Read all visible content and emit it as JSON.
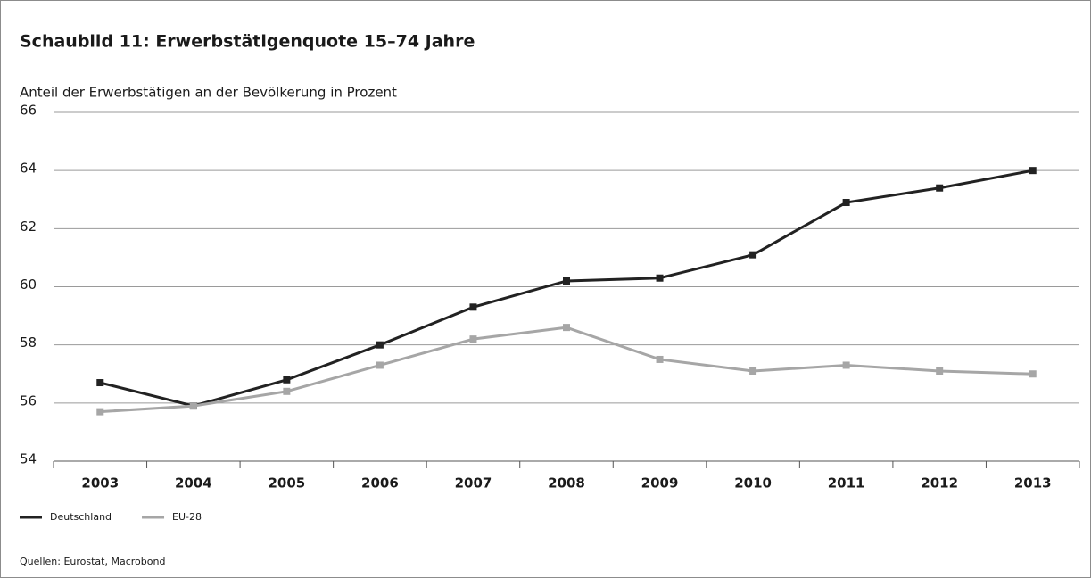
{
  "chart_data": {
    "type": "line",
    "title": "Schaubild 11: Erwerbstätigenquote 15–74 Jahre",
    "subtitle": "Anteil der Erwerbstätigen an der Bevölkerung in Prozent",
    "categories": [
      "2003",
      "2004",
      "2005",
      "2006",
      "2007",
      "2008",
      "2009",
      "2010",
      "2011",
      "2012",
      "2013"
    ],
    "series": [
      {
        "name": "Deutschland",
        "color": "#222222",
        "values": [
          56.7,
          55.9,
          56.8,
          58.0,
          59.3,
          60.2,
          60.3,
          61.1,
          62.9,
          63.4,
          64.0
        ]
      },
      {
        "name": "EU-28",
        "color": "#a6a6a6",
        "values": [
          55.7,
          55.9,
          56.4,
          57.3,
          58.2,
          58.6,
          57.5,
          57.1,
          57.3,
          57.1,
          57.0
        ]
      }
    ],
    "ylim": [
      54,
      66
    ],
    "yticks": [
      54,
      56,
      58,
      60,
      62,
      64,
      66
    ],
    "grid": true,
    "source": "Quellen: Eurostat, Macrobond"
  }
}
